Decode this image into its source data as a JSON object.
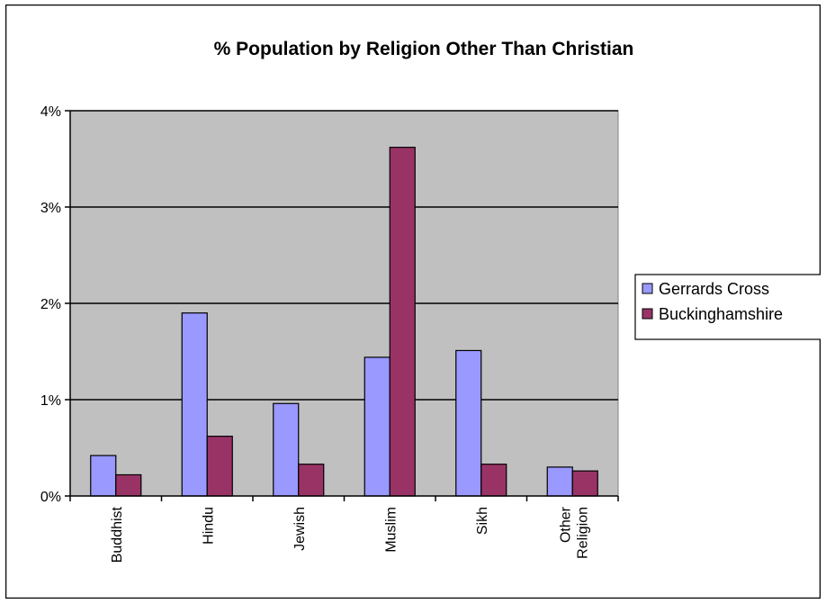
{
  "chart_data": {
    "type": "bar",
    "title": "% Population by Religion Other Than Christian",
    "categories": [
      [
        "Buddhist"
      ],
      [
        "Hindu"
      ],
      [
        "Jewish"
      ],
      [
        "Muslim"
      ],
      [
        "Sikh"
      ],
      [
        "Other",
        "Religion"
      ]
    ],
    "series": [
      {
        "name": "Gerrards Cross",
        "values": [
          0.42,
          1.9,
          0.96,
          1.44,
          1.51,
          0.3
        ],
        "color": "#9999ff"
      },
      {
        "name": "Buckinghamshire",
        "values": [
          0.22,
          0.62,
          0.33,
          3.62,
          0.33,
          0.26
        ],
        "color": "#993366"
      }
    ],
    "y_ticks": [
      "0%",
      "1%",
      "2%",
      "3%",
      "4%"
    ],
    "ylim": [
      0,
      4
    ],
    "grid": true,
    "plot_background": "#c0c0c0",
    "legend_position": "right"
  }
}
